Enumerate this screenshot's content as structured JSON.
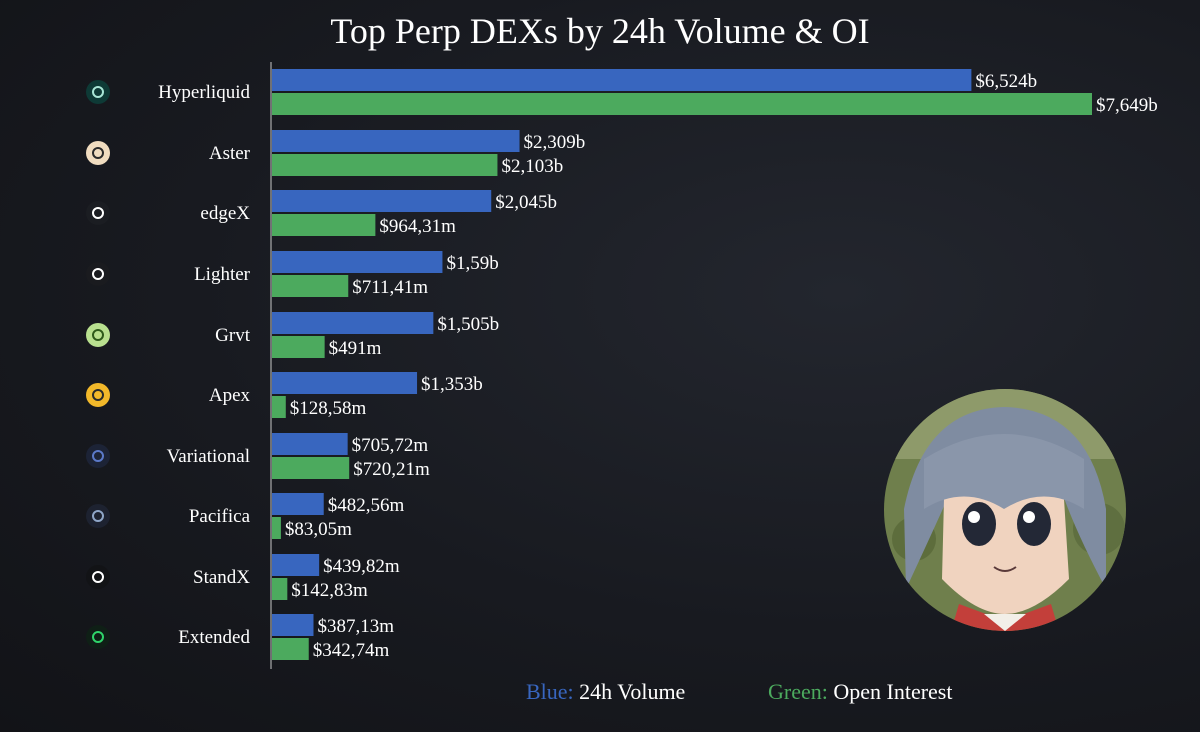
{
  "chart_data": {
    "type": "bar",
    "orientation": "horizontal",
    "title": "Top Perp DEXs by 24h Volume & OI",
    "unit": "USD billions",
    "categories": [
      "Hyperliquid",
      "Aster",
      "edgeX",
      "Lighter",
      "Grvt",
      "Apex",
      "Variational",
      "Pacifica",
      "StandX",
      "Extended"
    ],
    "series": [
      {
        "name": "24h Volume",
        "color": "#3866bf",
        "values": [
          6.524,
          2.309,
          2.045,
          1.59,
          1.505,
          1.353,
          0.70572,
          0.48256,
          0.43982,
          0.38713
        ],
        "labels": [
          "$6,524b",
          "$2,309b",
          "$2,045b",
          "$1,59b",
          "$1,505b",
          "$1,353b",
          "$705,72m",
          "$482,56m",
          "$439,82m",
          "$387,13m"
        ]
      },
      {
        "name": "Open Interest",
        "color": "#4caa5e",
        "values": [
          7.649,
          2.103,
          0.96431,
          0.71141,
          0.491,
          0.12858,
          0.72021,
          0.08305,
          0.14283,
          0.34274
        ],
        "labels": [
          "$7,649b",
          "$2,103b",
          "$964,31m",
          "$711,41m",
          "$491m",
          "$128,58m",
          "$720,21m",
          "$83,05m",
          "$142,83m",
          "$342,74m"
        ]
      }
    ],
    "xlim": [
      0,
      7.649
    ],
    "legend": {
      "position": "bottom",
      "blue_key": "Blue:",
      "blue_label": "24h Volume",
      "green_key": "Green:",
      "green_label": "Open Interest"
    },
    "icons": [
      "hyperliquid-icon",
      "aster-icon",
      "edgex-icon",
      "lighter-icon",
      "grvt-icon",
      "apex-icon",
      "variational-icon",
      "pacifica-icon",
      "standx-icon",
      "extended-icon"
    ]
  }
}
